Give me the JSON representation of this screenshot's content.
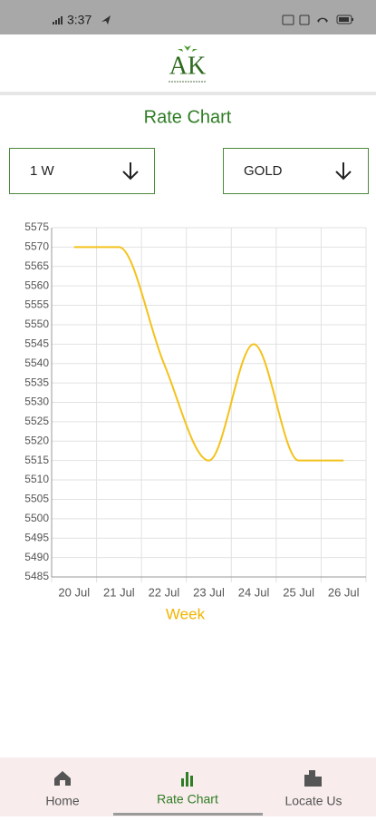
{
  "status_bar": {
    "time": "3:37"
  },
  "header": {
    "logo": "AK"
  },
  "page_title": "Rate Chart",
  "filters": {
    "period": "1 W",
    "metal": "GOLD"
  },
  "chart_data": {
    "type": "line",
    "categories": [
      "20 Jul",
      "21 Jul",
      "22 Jul",
      "23 Jul",
      "24 Jul",
      "25 Jul",
      "26 Jul"
    ],
    "series": [
      {
        "color": "#f4c21c",
        "values": [
          5570,
          5570,
          5540,
          5515,
          5545,
          5515,
          5515
        ]
      }
    ],
    "ylim": [
      5485,
      5575
    ],
    "yticks": [
      5485,
      5490,
      5495,
      5500,
      5505,
      5510,
      5515,
      5520,
      5525,
      5530,
      5535,
      5540,
      5545,
      5550,
      5555,
      5560,
      5565,
      5570,
      5575
    ],
    "xlabel": "Week",
    "grid": true,
    "smooth": true
  },
  "nav": {
    "items": [
      "Home",
      "Rate Chart",
      "Locate Us"
    ],
    "active": 1
  }
}
